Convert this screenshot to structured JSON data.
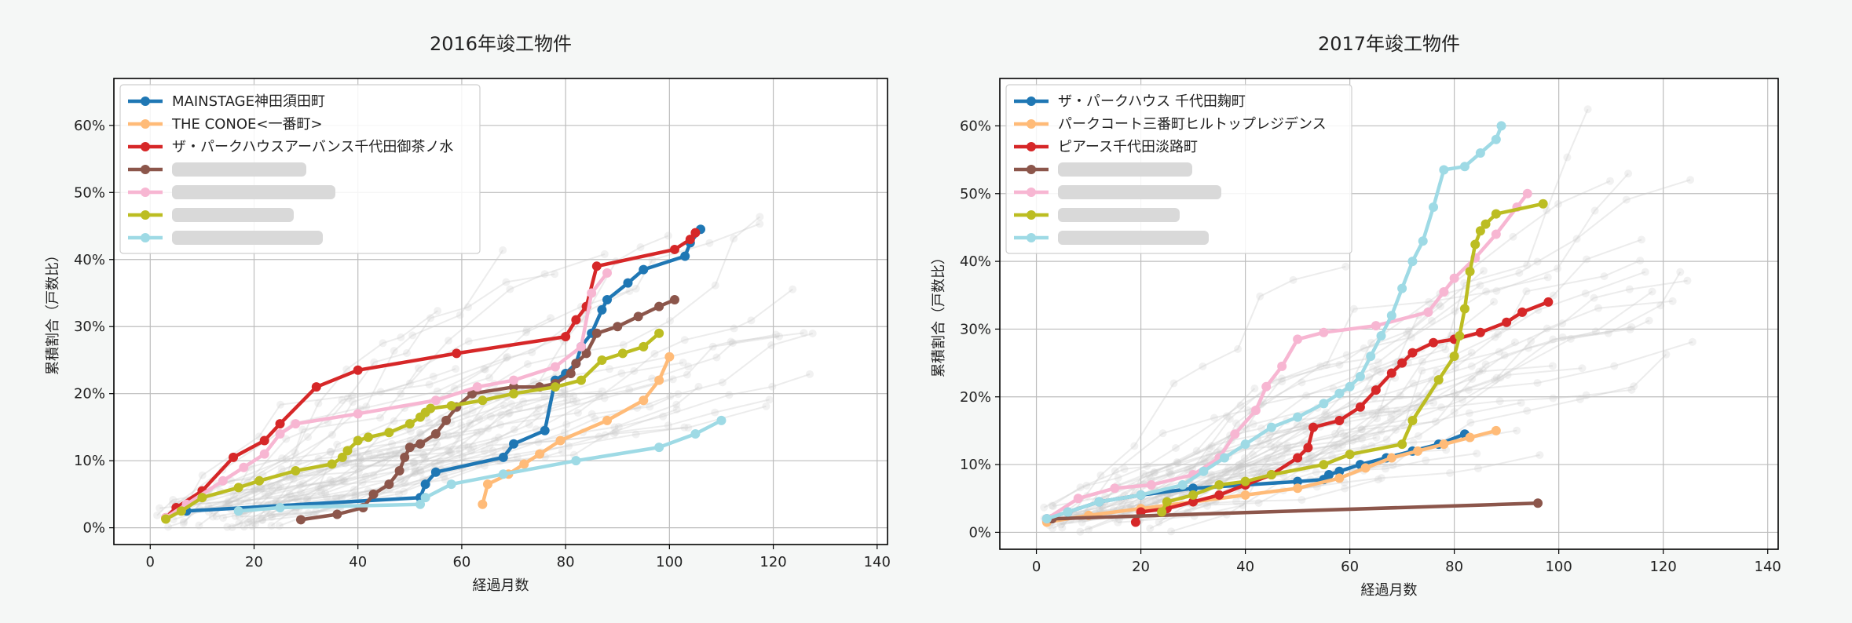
{
  "chart_data": [
    {
      "type": "line",
      "title": "2016年竣工物件",
      "xlabel": "経過月数",
      "ylabel": "累積割合（戸数比）",
      "xlim": [
        -7,
        142
      ],
      "ylim": [
        -2.5,
        67
      ],
      "xticks": [
        0,
        20,
        40,
        60,
        80,
        100,
        120,
        140
      ],
      "yticks": [
        0,
        10,
        20,
        30,
        40,
        50,
        60
      ],
      "yticklabels": [
        "0%",
        "10%",
        "20%",
        "30%",
        "40%",
        "50%",
        "60%"
      ],
      "grid": true,
      "legend_position": "top-left",
      "background_series_color": "#c8c8c8",
      "series": [
        {
          "name": "MAINSTAGE神田須田町",
          "color": "#1f77b4",
          "x": [
            7,
            52,
            53,
            55,
            68,
            70,
            76,
            78,
            80,
            82,
            83,
            85,
            87,
            88,
            92,
            95,
            103,
            104,
            106
          ],
          "y": [
            2.5,
            4.5,
            6.5,
            8.3,
            10.5,
            12.5,
            14.5,
            22,
            23,
            24.5,
            27,
            29,
            32.5,
            34,
            36.5,
            38.5,
            40.5,
            42.5,
            44.5
          ]
        },
        {
          "name": "THE CONOE<一番町>",
          "color": "#ffbb78",
          "x": [
            64,
            65,
            69,
            72,
            75,
            79,
            88,
            95,
            98,
            100
          ],
          "y": [
            3.5,
            6.5,
            8,
            9.5,
            11,
            13,
            16,
            19,
            22,
            25.5
          ]
        },
        {
          "name": "ザ・パークハウスアーバンス千代田御茶ノ水",
          "color": "#d62728",
          "x": [
            3,
            5,
            10,
            16,
            22,
            25,
            32,
            40,
            59,
            80,
            82,
            84,
            86,
            101,
            104,
            105
          ],
          "y": [
            1.5,
            3,
            5.5,
            10.5,
            13,
            15.5,
            21,
            23.5,
            26,
            28.5,
            31,
            33,
            39,
            41.5,
            43,
            44
          ]
        },
        {
          "name": "",
          "color": "#8c564b",
          "x": [
            29,
            36,
            41,
            43,
            46,
            48,
            49,
            50,
            52,
            55,
            57,
            59,
            62,
            70,
            75,
            78,
            81,
            82,
            84,
            86,
            90,
            94,
            98,
            101
          ],
          "y": [
            1.2,
            2,
            3,
            5,
            6.5,
            8.5,
            10.5,
            12,
            12.5,
            14,
            16,
            18,
            20,
            21,
            21,
            21.5,
            23,
            24.5,
            26,
            29,
            30,
            31.5,
            33,
            34
          ]
        },
        {
          "name": "",
          "color": "#f7b6d2",
          "x": [
            3,
            7,
            14,
            18,
            22,
            25,
            28,
            40,
            55,
            63,
            70,
            78,
            83,
            85,
            88
          ],
          "y": [
            1.5,
            3.5,
            7,
            9,
            11,
            14,
            15.5,
            17,
            19,
            21,
            22,
            24,
            27,
            35,
            38
          ]
        },
        {
          "name": "",
          "color": "#bcbd22",
          "x": [
            3,
            6,
            10,
            17,
            21,
            28,
            35,
            37,
            38,
            40,
            42,
            46,
            50,
            52,
            53,
            54,
            58,
            64,
            70,
            78,
            83,
            87,
            91,
            95,
            98
          ],
          "y": [
            1.3,
            2.5,
            4.5,
            6,
            7,
            8.5,
            9.5,
            10.5,
            11.5,
            13,
            13.5,
            14.2,
            15.5,
            16.5,
            17.2,
            17.8,
            18.2,
            19,
            20,
            21,
            22,
            25,
            26,
            27,
            29
          ]
        },
        {
          "name": "",
          "color": "#9edae5",
          "x": [
            17,
            25,
            52,
            53,
            58,
            68,
            82,
            98,
            105,
            110
          ],
          "y": [
            2.5,
            3,
            3.5,
            4.5,
            6.5,
            8,
            10,
            12,
            14,
            16
          ]
        }
      ]
    },
    {
      "type": "line",
      "title": "2017年竣工物件",
      "xlabel": "経過月数",
      "ylabel": "累積割合（戸数比）",
      "xlim": [
        -7,
        142
      ],
      "ylim": [
        -2.5,
        67
      ],
      "xticks": [
        0,
        20,
        40,
        60,
        80,
        100,
        120,
        140
      ],
      "yticks": [
        0,
        10,
        20,
        30,
        40,
        50,
        60
      ],
      "yticklabels": [
        "0%",
        "10%",
        "20%",
        "30%",
        "40%",
        "50%",
        "60%"
      ],
      "grid": true,
      "legend_position": "top-left",
      "background_series_color": "#c8c8c8",
      "series": [
        {
          "name": "ザ・パークハウス 千代田麹町",
          "color": "#1f77b4",
          "x": [
            2,
            6,
            12,
            20,
            30,
            40,
            50,
            55,
            56,
            58,
            62,
            67,
            72,
            77,
            82
          ],
          "y": [
            2,
            3,
            4.5,
            5.5,
            6.5,
            7,
            7.5,
            7.8,
            8.5,
            9,
            10,
            11,
            12,
            13,
            14.5
          ]
        },
        {
          "name": "パークコート三番町ヒルトップレジデンス",
          "color": "#ffbb78",
          "x": [
            2,
            10,
            20,
            30,
            40,
            50,
            58,
            63,
            68,
            73,
            78,
            83,
            88
          ],
          "y": [
            1.5,
            2.5,
            3.5,
            4.5,
            5.5,
            6.5,
            8,
            9.5,
            11,
            12,
            13,
            14,
            15
          ]
        },
        {
          "name": "ピアース千代田淡路町",
          "color": "#d62728",
          "x": [
            19,
            20,
            25,
            30,
            35,
            40,
            45,
            50,
            52,
            53,
            58,
            62,
            65,
            68,
            70,
            72,
            76,
            80,
            85,
            90,
            93,
            98
          ],
          "y": [
            1.5,
            3,
            3.5,
            4.5,
            5.5,
            7,
            8.5,
            11,
            12.5,
            15.5,
            16.5,
            18.5,
            21,
            23.5,
            25,
            26.5,
            28,
            28.5,
            29.5,
            31,
            32.5,
            34
          ]
        },
        {
          "name": "",
          "color": "#8c564b",
          "x": [
            3,
            96
          ],
          "y": [
            2,
            4.3
          ]
        },
        {
          "name": "",
          "color": "#f7b6d2",
          "x": [
            2,
            8,
            15,
            22,
            30,
            35,
            38,
            42,
            44,
            47,
            50,
            55,
            65,
            75,
            78,
            80,
            84,
            88,
            92,
            94
          ],
          "y": [
            2,
            5,
            6.5,
            7,
            8.5,
            11,
            14.5,
            18,
            21.5,
            24.5,
            28.5,
            29.5,
            30.5,
            32.5,
            35.5,
            37.5,
            40.5,
            44,
            48,
            50
          ]
        },
        {
          "name": "",
          "color": "#bcbd22",
          "x": [
            24,
            25,
            30,
            35,
            40,
            45,
            55,
            60,
            70,
            72,
            77,
            80,
            81,
            82,
            83,
            84,
            85,
            86,
            88,
            97
          ],
          "y": [
            3,
            4.5,
            5.5,
            7,
            7.5,
            8.5,
            10,
            11.5,
            13,
            16.5,
            22.5,
            26,
            29,
            33,
            38.5,
            42.5,
            44.5,
            45.5,
            47,
            48.5
          ]
        },
        {
          "name": "",
          "color": "#9edae5",
          "x": [
            2,
            6,
            12,
            20,
            28,
            32,
            36,
            40,
            45,
            50,
            55,
            58,
            60,
            62,
            64,
            66,
            68,
            70,
            72,
            74,
            76,
            78,
            82,
            85,
            88,
            89
          ],
          "y": [
            2,
            3,
            4.5,
            5.5,
            7,
            9,
            11,
            13,
            15.5,
            17,
            19,
            20.5,
            21.5,
            23,
            26,
            29,
            32,
            36,
            40,
            43,
            48,
            53.5,
            54,
            56,
            58,
            60
          ]
        }
      ]
    }
  ]
}
